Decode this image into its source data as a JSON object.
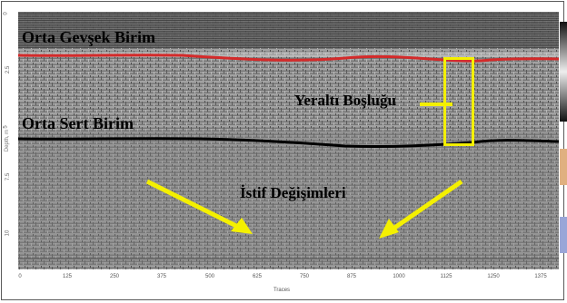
{
  "figure": {
    "y_axis": {
      "label": "Depth, m",
      "ticks": [
        "0",
        "2.5",
        "5",
        "7.5",
        "10"
      ]
    },
    "x_axis": {
      "label": "Traces",
      "ticks": [
        "0",
        "125",
        "250",
        "375",
        "500",
        "625",
        "750",
        "875",
        "1000",
        "1125",
        "1250",
        "1375"
      ]
    },
    "annotations": {
      "upper_layer": "Orta Gevşek Birim",
      "lower_layer": "Orta Sert Birim",
      "cavity": "Yeraltı Boşluğu",
      "stratification": "İstif Değişimleri"
    },
    "colors": {
      "upper_boundary": "#d42a2a",
      "lower_boundary": "#000000",
      "highlight": "#f4f000",
      "radar_background": "#8c8c8c"
    }
  }
}
